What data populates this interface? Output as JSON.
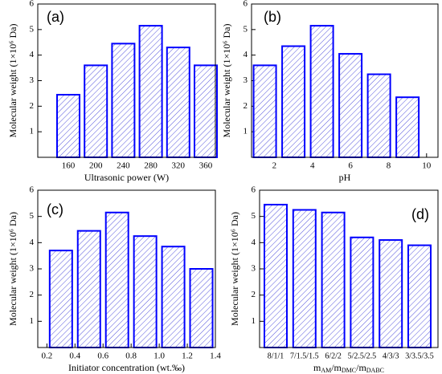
{
  "chart_data": [
    {
      "type": "bar",
      "label": "(a)",
      "categories": [
        "160",
        "200",
        "240",
        "280",
        "320",
        "360"
      ],
      "values": [
        2.45,
        3.6,
        4.45,
        5.15,
        4.3,
        3.6
      ],
      "xlabel": "Ultrasonic power (W)",
      "ylabel": "Molecular weight (1×10⁶ Da)",
      "ylim": [
        0,
        6
      ],
      "yticks": [
        1,
        2,
        3,
        4,
        5,
        6
      ],
      "color": "#0000ff"
    },
    {
      "type": "bar",
      "label": "(b)",
      "x": [
        1.5,
        3,
        4.5,
        6,
        7.5,
        9
      ],
      "values": [
        3.6,
        4.35,
        5.15,
        4.05,
        3.25,
        2.35
      ],
      "xlim": [
        0.8,
        10.6
      ],
      "xticks": [
        2,
        4,
        6,
        8,
        10
      ],
      "xlabel": "pH",
      "ylabel": "Molecular weight (1×10⁶ Da)",
      "ylim": [
        0,
        6
      ],
      "yticks": [
        1,
        2,
        3,
        4,
        5,
        6
      ],
      "color": "#0000ff"
    },
    {
      "type": "bar",
      "label": "(c)",
      "x": [
        0.3,
        0.5,
        0.7,
        0.9,
        1.1,
        1.3
      ],
      "values": [
        3.7,
        4.45,
        5.15,
        4.25,
        3.85,
        3.0
      ],
      "xlim": [
        0.135,
        1.4
      ],
      "xticks": [
        0.2,
        0.4,
        0.6,
        0.8,
        {
          "value": 1,
          "label": "1.0"
        },
        1.2,
        1.4
      ],
      "xlabel": "Initiator concentration (wt.‰)",
      "ylabel": "Molecular weight (1×10⁶ Da)",
      "ylim": [
        0,
        6
      ],
      "yticks": [
        1,
        2,
        3,
        4,
        5,
        6
      ],
      "color": "#0000ff"
    },
    {
      "type": "bar",
      "label": "(d)",
      "categories": [
        "8/1/1",
        "7/1.5/1.5",
        "6/2/2",
        "5/2.5/2.5",
        "4/3/3",
        "3/3.5/3.5"
      ],
      "values": [
        5.45,
        5.25,
        5.15,
        4.2,
        4.1,
        3.9
      ],
      "xlabel": [
        "m",
        "AM",
        "/m",
        "DMC",
        "/m",
        "DABC"
      ],
      "ylabel": "Molecular weight (1×10⁶ Da)",
      "ylim": [
        0,
        6
      ],
      "yticks": [
        1,
        2,
        3,
        4,
        5,
        6
      ],
      "color": "#0000ff"
    }
  ]
}
